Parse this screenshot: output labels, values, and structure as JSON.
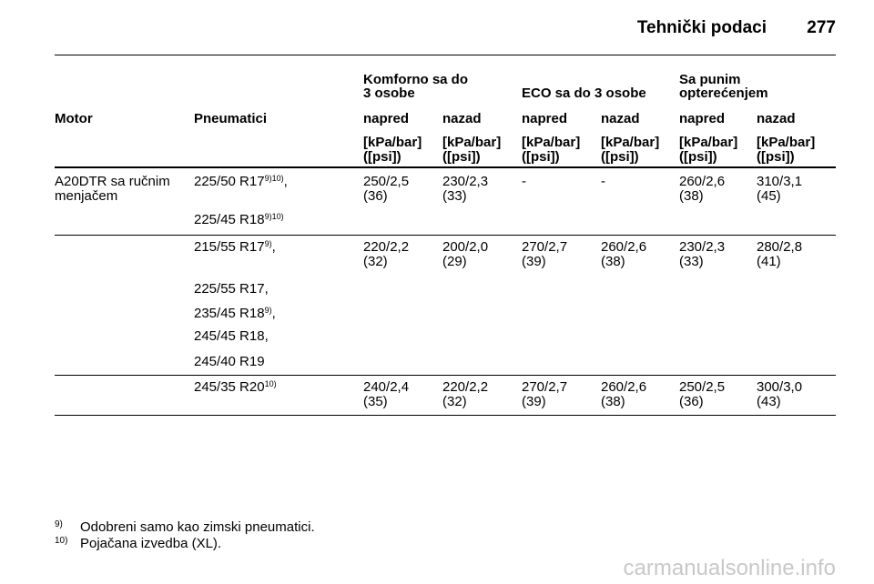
{
  "header": {
    "title": "Tehnički podaci",
    "page": "277"
  },
  "table": {
    "group_headers": [
      [
        "Komforno sa do",
        "3 osobe"
      ],
      [
        "ECO sa do 3 osobe"
      ],
      [
        "Sa punim",
        "opterećenjem"
      ]
    ],
    "columns": [
      "Motor",
      "Pneumatici",
      "napred",
      "nazad",
      "napred",
      "nazad",
      "napred",
      "nazad"
    ],
    "units": [
      [
        "[kPa/bar]",
        "([psi])"
      ],
      [
        "[kPa/bar]",
        "([psi])"
      ],
      [
        "[kPa/bar]",
        "([psi])"
      ],
      [
        "[kPa/bar]",
        "([psi])"
      ],
      [
        "[kPa/bar]",
        "([psi])"
      ],
      [
        "[kPa/bar]",
        "([psi])"
      ]
    ],
    "motor": [
      "A20DTR sa ručnim",
      "menjačem"
    ],
    "groups": [
      {
        "tires": [
          {
            "text": "225/50 R17",
            "sup": "9)10)",
            "suffix": ","
          },
          {
            "text": "225/45 R18",
            "sup": "9)10)"
          }
        ],
        "values": [
          [
            "250/2,5",
            "(36)"
          ],
          [
            "230/2,3",
            "(33)"
          ],
          [
            "-"
          ],
          [
            "-"
          ],
          [
            "260/2,6",
            "(38)"
          ],
          [
            "310/3,1",
            "(45)"
          ]
        ]
      },
      {
        "tires": [
          {
            "text": "215/55 R17",
            "sup": "9)",
            "suffix": ","
          },
          {
            "text": "225/55 R17,"
          },
          {
            "text": "235/45 R18",
            "sup": "9)",
            "suffix": ","
          },
          {
            "text": "245/45 R18,"
          },
          {
            "text": "245/40 R19"
          }
        ],
        "values": [
          [
            "220/2,2",
            "(32)"
          ],
          [
            "200/2,0",
            "(29)"
          ],
          [
            "270/2,7",
            "(39)"
          ],
          [
            "260/2,6",
            "(38)"
          ],
          [
            "230/2,3",
            "(33)"
          ],
          [
            "280/2,8",
            "(41)"
          ]
        ]
      },
      {
        "tires": [
          {
            "text": "245/35 R20",
            "sup": "10)"
          }
        ],
        "values": [
          [
            "240/2,4",
            "(35)"
          ],
          [
            "220/2,2",
            "(32)"
          ],
          [
            "270/2,7",
            "(39)"
          ],
          [
            "260/2,6",
            "(38)"
          ],
          [
            "250/2,5",
            "(36)"
          ],
          [
            "300/3,0",
            "(43)"
          ]
        ]
      }
    ]
  },
  "footnotes": [
    {
      "mark": "9)",
      "text": "Odobreni samo kao zimski pneumatici."
    },
    {
      "mark": "10)",
      "text": "Pojačana izvedba (XL)."
    }
  ],
  "watermark": "carmanualsonline.info"
}
